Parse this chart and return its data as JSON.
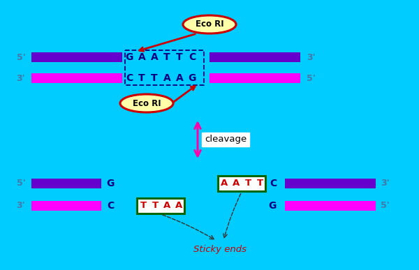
{
  "bg_color": "#00CCFF",
  "bar_color_top": "#6600CC",
  "bar_color_bottom": "#FF00FF",
  "dna_text_color": "#000080",
  "label_color": "#4477AA",
  "eco_ri_fill": "#FFFFAA",
  "eco_ri_border": "#CC0000",
  "sticky_box_color": "#006600",
  "sticky_text_color": "#CC0000",
  "cleavage_arrow_color": "#FF00AA",
  "sticky_label_color": "#CC0000",
  "red_arrow_color": "#CC0000",
  "dashed_line_color": "#000080",
  "fig_w": 6.0,
  "fig_h": 3.87,
  "dpi": 100,
  "top5_label": "5'",
  "top3_label": "3'",
  "seq_top": [
    "G",
    "A",
    "A",
    "T",
    "T",
    "C"
  ],
  "seq_bot": [
    "C",
    "T",
    "T",
    "A",
    "A",
    "G"
  ],
  "sticky_top": [
    "A",
    "A",
    "T",
    "T"
  ],
  "sticky_bot": [
    "T",
    "T",
    "A",
    "A"
  ],
  "cleavage_text": "cleavage",
  "sticky_ends_text": "Sticky ends",
  "ecori_text": "Eco RI"
}
